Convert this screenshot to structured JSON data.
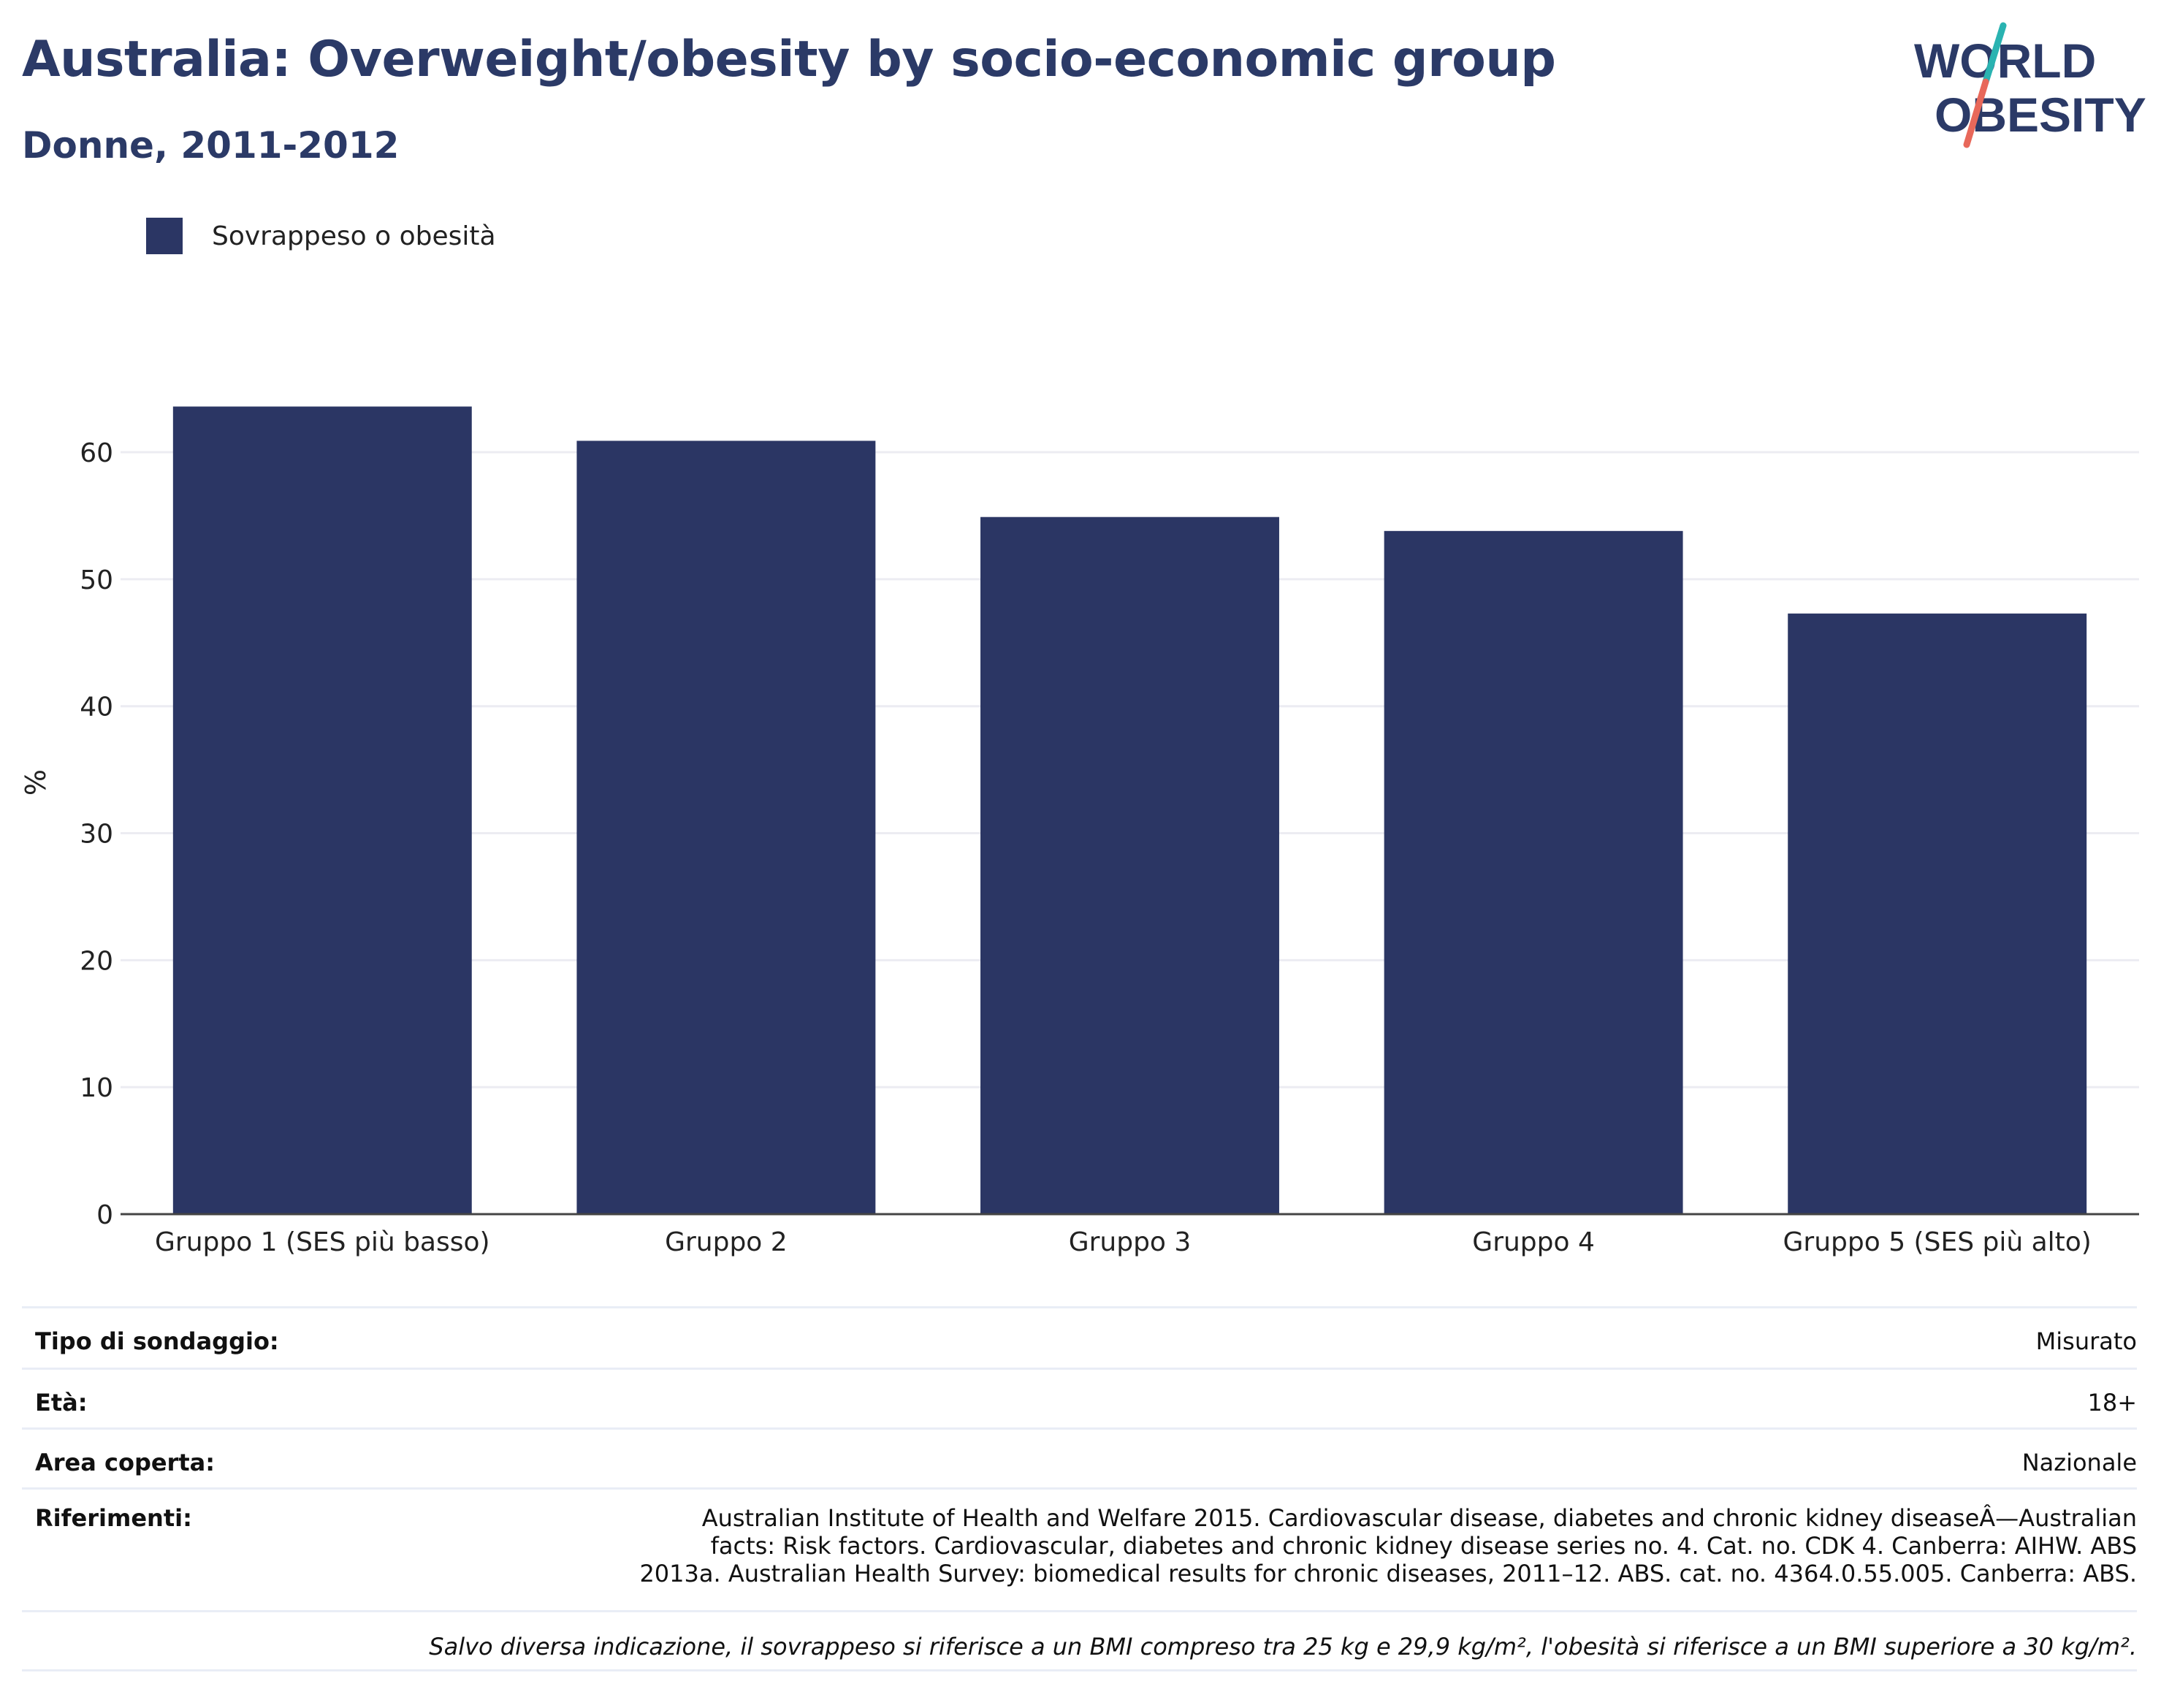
{
  "header": {
    "title": "Australia: Overweight/obesity by socio-economic group",
    "subtitle": "Donne, 2011-2012"
  },
  "logo": {
    "line1": "WORLD",
    "line2": "OBESITY",
    "text_color": "#2b3a67",
    "accent_teal": "#2ab3b1",
    "accent_red": "#e8685a"
  },
  "chart_data": {
    "type": "bar",
    "categories": [
      "Gruppo 1 (SES più basso)",
      "Gruppo 2",
      "Gruppo 3",
      "Gruppo 4",
      "Gruppo 5 (SES più alto)"
    ],
    "series": [
      {
        "name": "Sovrappeso o obesità",
        "values": [
          63.6,
          60.9,
          54.9,
          53.8,
          47.3
        ],
        "color": "#2b3664"
      }
    ],
    "ylabel": "%",
    "ylim": [
      0,
      68
    ],
    "yticks": [
      0,
      10,
      20,
      30,
      40,
      50,
      60
    ],
    "grid": true,
    "legend_position": "top-left"
  },
  "info_table": {
    "rows": [
      {
        "label": "Tipo di sondaggio:",
        "value": "Misurato"
      },
      {
        "label": "Età:",
        "value": "18+"
      },
      {
        "label": "Area coperta:",
        "value": "Nazionale"
      },
      {
        "label": "Riferimenti:",
        "value": "Australian Institute of Health and Welfare 2015. Cardiovascular disease, diabetes and chronic kidney diseaseÂ—Australian facts: Risk factors. Cardiovascular, diabetes and chronic kidney disease series no. 4. Cat. no. CDK 4. Canberra: AIHW. ABS 2013a. Australian Health Survey: biomedical results for chronic diseases, 2011–12. ABS. cat. no. 4364.0.55.005. Canberra: ABS."
      }
    ],
    "note": "Salvo diversa indicazione, il sovrappeso si riferisce a un BMI compreso tra 25 kg e 29,9 kg/m², l'obesità si riferisce a un BMI superiore a 30 kg/m²."
  }
}
